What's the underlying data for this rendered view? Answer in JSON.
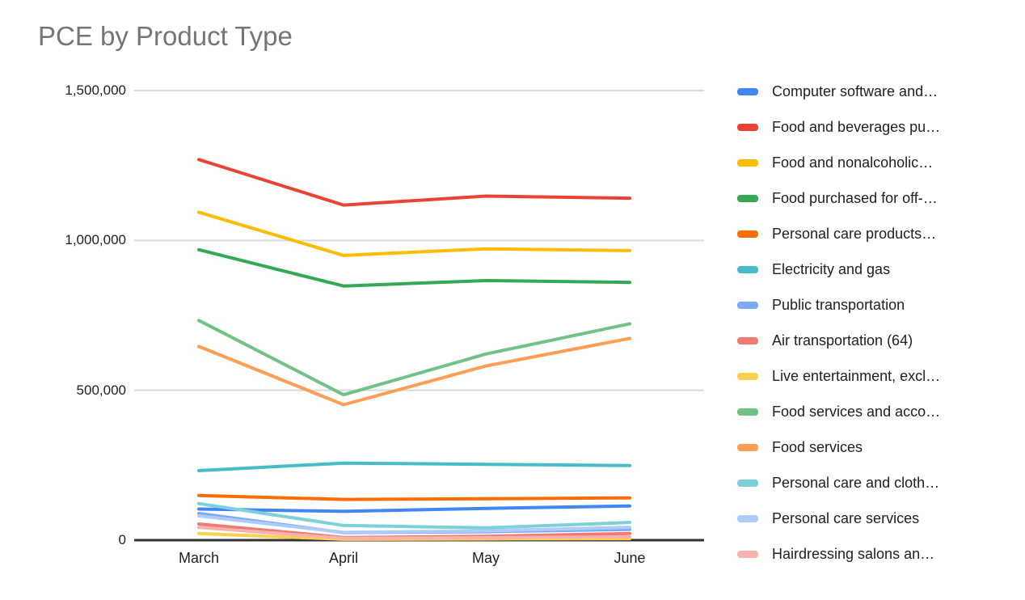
{
  "title": "PCE by Product Type",
  "colors": {
    "title_text": "#757575",
    "tick_text": "#1f1f1f",
    "legend_text": "#1f1f1f",
    "gridline": "#d9d9d9",
    "axis_line": "#333333",
    "background": "#ffffff"
  },
  "chart_data": {
    "type": "line",
    "title": "PCE by Product Type",
    "xlabel": "",
    "ylabel": "",
    "categories": [
      "March",
      "April",
      "May",
      "June"
    ],
    "ylim": [
      0,
      1500000
    ],
    "grid": true,
    "legend_position": "right",
    "y_ticks": [
      {
        "label": "0",
        "value": 0
      },
      {
        "label": "500,000",
        "value": 500000
      },
      {
        "label": "1,000,000",
        "value": 1000000
      },
      {
        "label": "1,500,000",
        "value": 1500000
      }
    ],
    "series": [
      {
        "name": "Computer software and…",
        "color": "#4285F4",
        "values": [
          104000,
          96000,
          106000,
          114000
        ]
      },
      {
        "name": "Food and beverages pu…",
        "color": "#EA4335",
        "values": [
          1270000,
          1118000,
          1148000,
          1141000
        ]
      },
      {
        "name": "Food and nonalcoholic…",
        "color": "#FBBC04",
        "values": [
          1094000,
          950000,
          972000,
          966000
        ]
      },
      {
        "name": "Food purchased for off-…",
        "color": "#34A853",
        "values": [
          969000,
          848000,
          866000,
          860000
        ]
      },
      {
        "name": "Personal care products…",
        "color": "#FF6D01",
        "values": [
          149000,
          136000,
          138000,
          141000
        ]
      },
      {
        "name": "Electricity and gas",
        "color": "#46BDC6",
        "values": [
          232000,
          257000,
          253000,
          249000
        ]
      },
      {
        "name": "Public transportation",
        "color": "#7BAAF7",
        "values": [
          89000,
          25000,
          28000,
          36000
        ]
      },
      {
        "name": "Air transportation (64)",
        "color": "#F07B72",
        "values": [
          54000,
          9000,
          13000,
          22000
        ]
      },
      {
        "name": "Live entertainment, excl…",
        "color": "#FCD04F",
        "values": [
          22000,
          3000,
          4000,
          5000
        ]
      },
      {
        "name": "Food services and acco…",
        "color": "#71C287",
        "values": [
          733000,
          485000,
          621000,
          722000
        ]
      },
      {
        "name": "Food services",
        "color": "#FF9E54",
        "values": [
          646000,
          452000,
          581000,
          673000
        ]
      },
      {
        "name": "Personal care and cloth…",
        "color": "#7CD1D9",
        "values": [
          122000,
          49000,
          41000,
          59000
        ]
      },
      {
        "name": "Personal care services",
        "color": "#AECBFA",
        "values": [
          81000,
          26000,
          31000,
          43000
        ]
      },
      {
        "name": "Hairdressing salons an…",
        "color": "#F6B3AE",
        "values": [
          43000,
          6000,
          8000,
          11000
        ]
      }
    ]
  }
}
